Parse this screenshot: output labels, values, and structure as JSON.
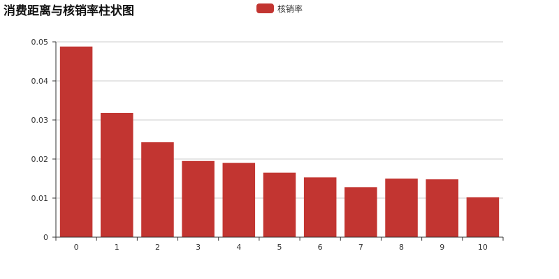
{
  "chart_data": {
    "type": "bar",
    "title": "消费距离与核销率柱状图",
    "xlabel": "",
    "ylabel": "",
    "categories": [
      "0",
      "1",
      "2",
      "3",
      "4",
      "5",
      "6",
      "7",
      "8",
      "9",
      "10"
    ],
    "series": [
      {
        "name": "核销率",
        "values": [
          0.0488,
          0.0318,
          0.0243,
          0.0195,
          0.019,
          0.0165,
          0.0153,
          0.0128,
          0.015,
          0.0148,
          0.0102
        ]
      }
    ],
    "ylim": [
      0,
      0.05
    ],
    "yticks": [
      "0",
      "0.01",
      "0.02",
      "0.03",
      "0.04",
      "0.05"
    ],
    "grid": true,
    "legend_position": "top-center",
    "colors": {
      "bar": "#c23531",
      "grid": "#cccccc",
      "axis": "#333333",
      "text": "#333333",
      "title": "#111111"
    }
  }
}
